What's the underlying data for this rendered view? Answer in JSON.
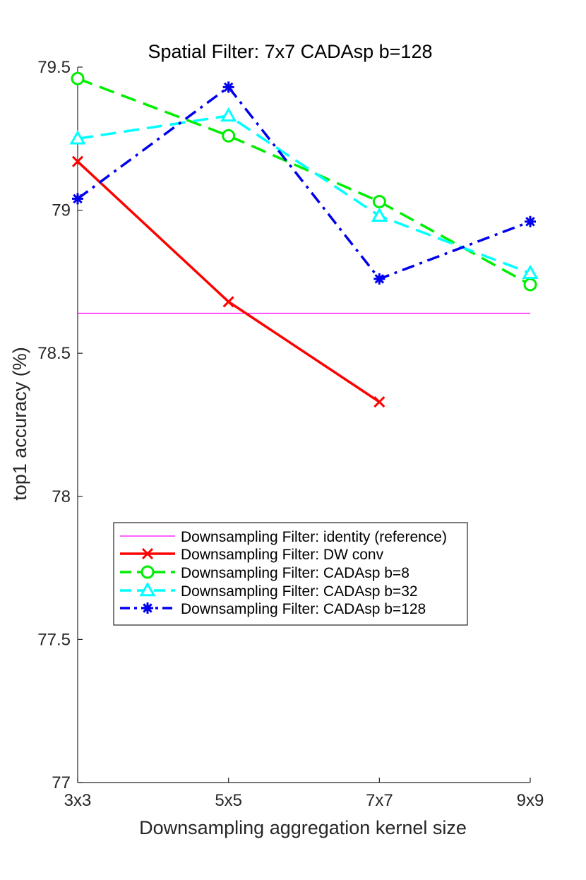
{
  "chart_data": {
    "type": "line",
    "title": "Spatial Filter: 7x7 CADAsp b=128",
    "xlabel": "Downsampling aggregation kernel size",
    "ylabel": "top1 accuracy (%)",
    "categories": [
      "3x3",
      "5x5",
      "7x7",
      "9x9"
    ],
    "ylim": [
      77,
      79.5
    ],
    "yticks": [
      77,
      77.5,
      78,
      78.5,
      79,
      79.5
    ],
    "ytick_labels": [
      "77",
      "77.5",
      "78",
      "78.5",
      "79",
      "79.5"
    ],
    "grid": false,
    "legend_position": "center-left",
    "reference": {
      "name": "Downsampling Filter: identity (reference)",
      "value": 78.64,
      "color": "#ff00ff"
    },
    "series": [
      {
        "name": "Downsampling Filter: DW conv",
        "values": [
          79.17,
          78.68,
          78.33,
          null
        ],
        "color": "#ff0000",
        "marker": "x",
        "dash": "solid"
      },
      {
        "name": "Downsampling Filter: CADAsp b=8",
        "values": [
          79.46,
          79.26,
          79.03,
          78.74
        ],
        "color": "#00ee00",
        "marker": "circle",
        "dash": "dashed"
      },
      {
        "name": "Downsampling Filter: CADAsp b=32",
        "values": [
          79.25,
          79.33,
          78.98,
          78.78
        ],
        "color": "#00ffff",
        "marker": "triangle",
        "dash": "dashed"
      },
      {
        "name": "Downsampling Filter: CADAsp b=128",
        "values": [
          79.04,
          79.43,
          78.76,
          78.96
        ],
        "color": "#0000ee",
        "marker": "asterisk",
        "dash": "dashdot"
      }
    ]
  }
}
